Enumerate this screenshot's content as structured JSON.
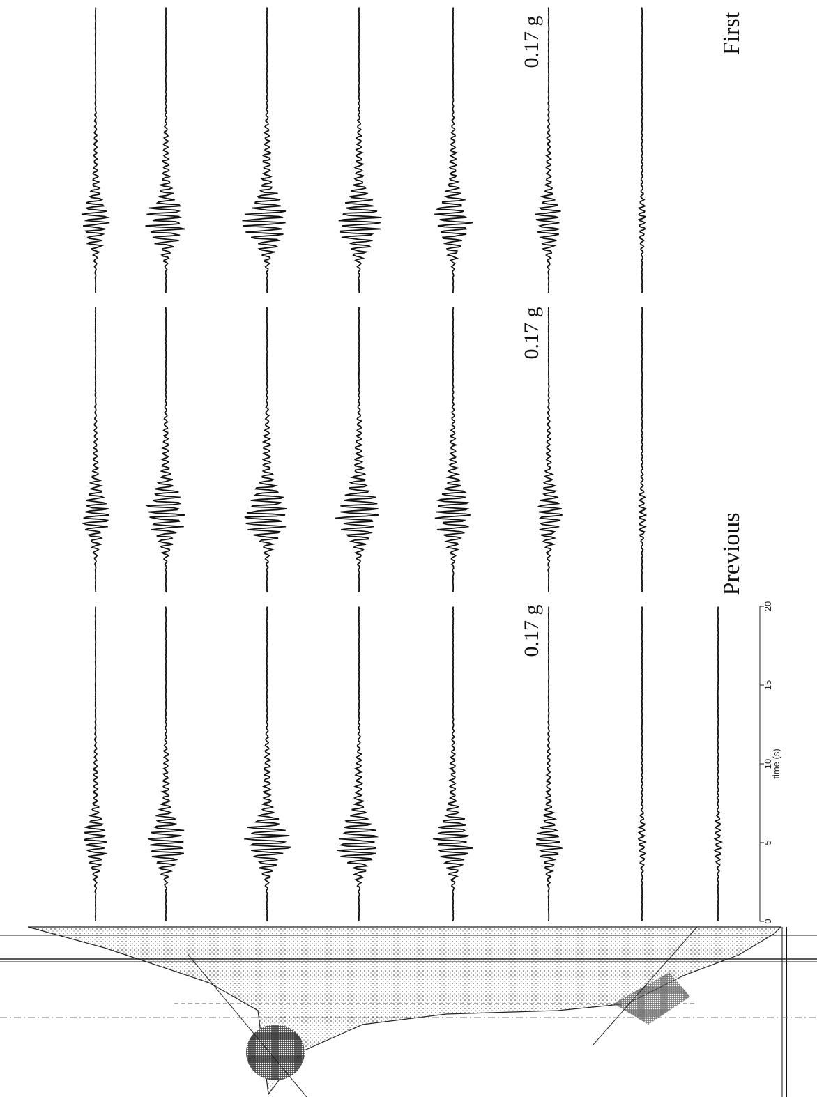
{
  "labels": {
    "first": "First",
    "previous": "Previous"
  },
  "scale_labels": [
    "0.17 g",
    "0.17 g",
    "0.17 g"
  ],
  "time_axis": {
    "label": "time (s)",
    "lim": [
      0,
      20
    ],
    "ticks": [
      0,
      5,
      10,
      15,
      20
    ]
  }
}
